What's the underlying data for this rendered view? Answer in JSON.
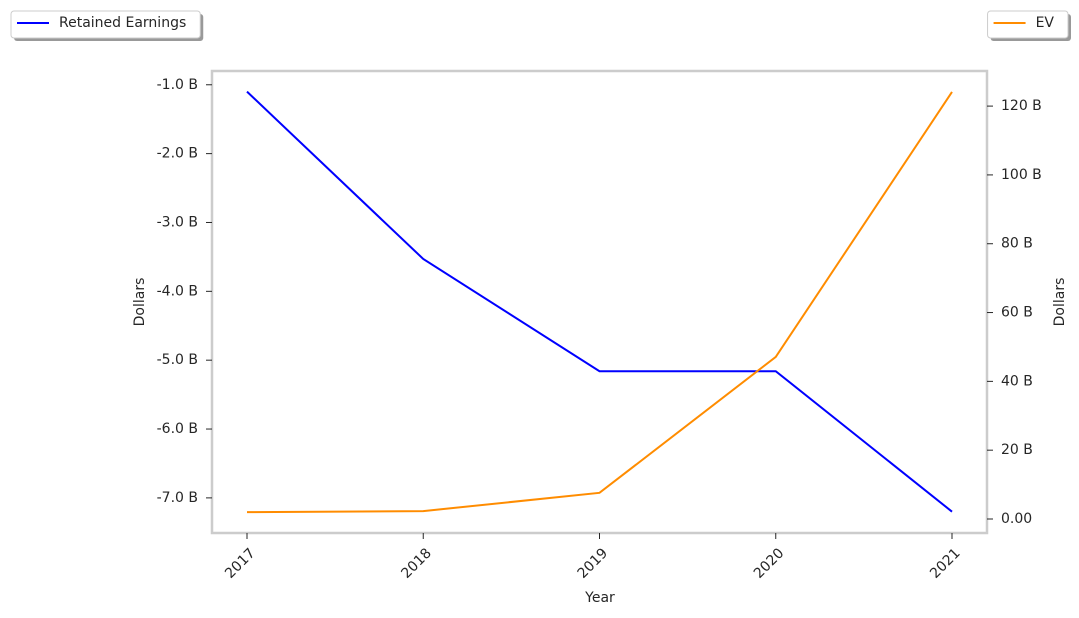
{
  "chart_data": {
    "type": "line",
    "x_label": "Year",
    "y_label": "Dollars",
    "y2_label": "Dollars",
    "categories": [
      "2017",
      "2018",
      "2019",
      "2020",
      "2021"
    ],
    "series": [
      {
        "name": "Retained Earnings",
        "color": "#0000ff",
        "values": [
          -1.1,
          -3.53,
          -5.16,
          -5.16,
          -7.2
        ]
      },
      {
        "name": "EV",
        "color": "#ff8c00",
        "axis": "y2",
        "values": [
          2.0,
          2.3,
          7.6,
          47.1,
          124.1
        ]
      }
    ],
    "ylim": [
      -7.51,
      -0.8
    ],
    "yticks": [
      {
        "value": -1,
        "label": "-1.0 B"
      },
      {
        "value": -2,
        "label": "-2.0 B"
      },
      {
        "value": -3,
        "label": "-3.0 B"
      },
      {
        "value": -4,
        "label": "-4.0 B"
      },
      {
        "value": -5,
        "label": "-5.0 B"
      },
      {
        "value": -6,
        "label": "-6.0 B"
      },
      {
        "value": -7,
        "label": "-7.0 B"
      }
    ],
    "y2lim": [
      -4.07,
      130.2
    ],
    "y2ticks": [
      {
        "value": 0,
        "label": "0.00"
      },
      {
        "value": 20,
        "label": "20 B"
      },
      {
        "value": 40,
        "label": "40 B"
      },
      {
        "value": 60,
        "label": "60 B"
      },
      {
        "value": 80,
        "label": "80 B"
      },
      {
        "value": 100,
        "label": "100 B"
      },
      {
        "value": 120,
        "label": "120 B"
      }
    ]
  }
}
